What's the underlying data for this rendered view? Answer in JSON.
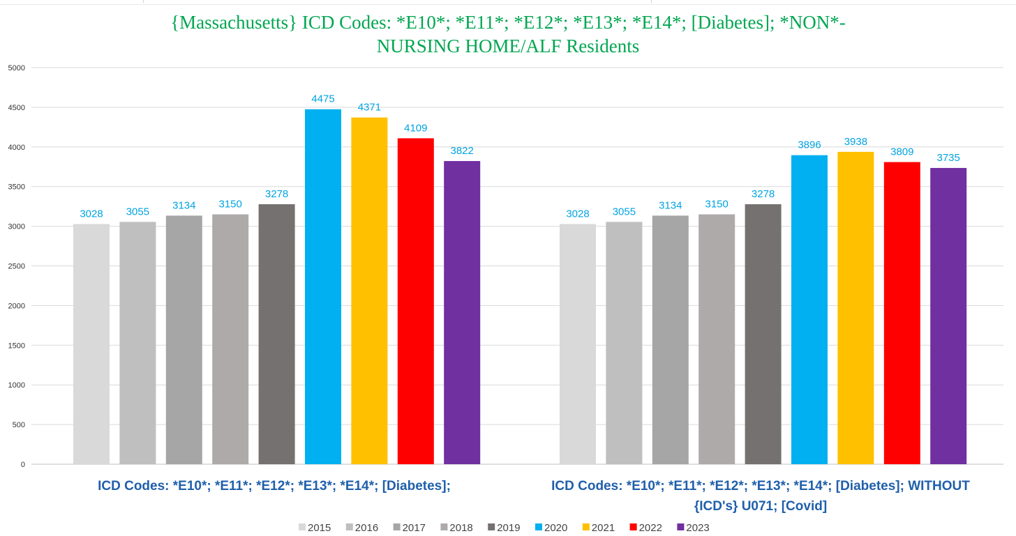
{
  "chart_data": {
    "type": "bar",
    "title_lines": [
      "{Massachusetts}   ICD Codes: *E10*; *E11*; *E12*; *E13*; *E14*;  [Diabetes]; *NON*-",
      "NURSING HOME/ALF Residents"
    ],
    "categories": [
      [
        "ICD Codes: *E10*; *E11*; *E12*; *E13*; *E14*;  [Diabetes];"
      ],
      [
        "ICD Codes: *E10*; *E11*; *E12*; *E13*; *E14*;  [Diabetes];  WITHOUT",
        "{ICD's} U071;  [Covid]"
      ]
    ],
    "series": [
      {
        "name": "2015",
        "color": "#D9D9D9",
        "values": [
          3028,
          3028
        ]
      },
      {
        "name": "2016",
        "color": "#BFBFBF",
        "values": [
          3055,
          3055
        ]
      },
      {
        "name": "2017",
        "color": "#A6A6A6",
        "values": [
          3134,
          3134
        ]
      },
      {
        "name": "2018",
        "color": "#AEAAAA",
        "values": [
          3150,
          3150
        ]
      },
      {
        "name": "2019",
        "color": "#767171",
        "values": [
          3278,
          3278
        ]
      },
      {
        "name": "2020",
        "color": "#00B0F0",
        "values": [
          4475,
          3896
        ]
      },
      {
        "name": "2021",
        "color": "#FFC000",
        "values": [
          4371,
          3938
        ]
      },
      {
        "name": "2022",
        "color": "#FF0000",
        "values": [
          4109,
          3809
        ]
      },
      {
        "name": "2023",
        "color": "#7030A0",
        "values": [
          3822,
          3735
        ]
      }
    ],
    "ylim": [
      0,
      5000
    ],
    "yticks": [
      0,
      500,
      1000,
      1500,
      2000,
      2500,
      3000,
      3500,
      4000,
      4500,
      5000
    ],
    "grid": true,
    "legend_position": "bottom",
    "data_label_color": "#00A3E0",
    "category_label_color": "#1F5FAA",
    "title_color": "#00A651"
  }
}
